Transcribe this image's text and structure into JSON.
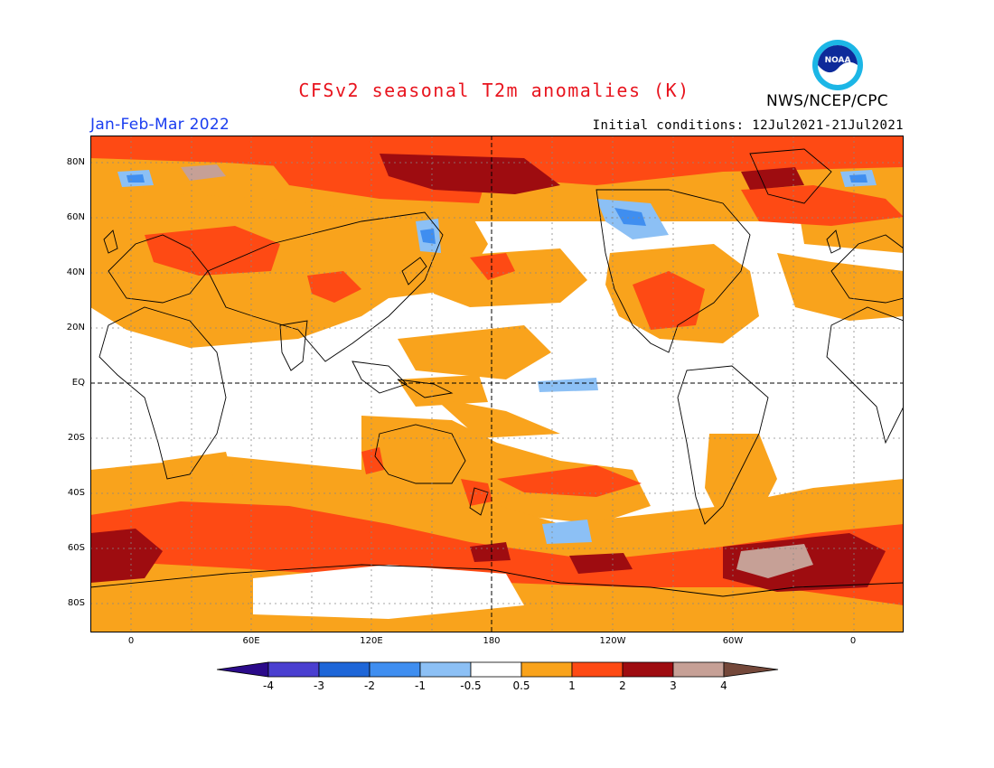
{
  "header": {
    "title": "CFSv2 seasonal T2m anomalies (K)",
    "organization": "NWS/NCEP/CPC",
    "logo_text": "NOAA",
    "period": "Jan-Feb-Mar 2022",
    "initial_conditions": "Initial conditions: 12Jul2021-21Jul2021"
  },
  "map": {
    "lat_labels": [
      "80N",
      "60N",
      "40N",
      "20N",
      "EQ",
      "20S",
      "40S",
      "60S",
      "80S"
    ],
    "lon_labels": [
      "0",
      "60E",
      "120E",
      "180",
      "120W",
      "60W",
      "0"
    ],
    "ocean_color": "#ffffff",
    "gridline_style": "dotted",
    "reference_lines": "dashed equator and dateline"
  },
  "colorbar": {
    "labels": [
      "-4",
      "-3",
      "-2",
      "-1",
      "-0.5",
      "0.5",
      "1",
      "2",
      "3",
      "4"
    ],
    "colors": [
      "#2b0a8a",
      "#4a3fd0",
      "#1e66d8",
      "#3f8ef0",
      "#8cc0f5",
      "#ffffff",
      "#f9a31c",
      "#fe4a14",
      "#9e0c10",
      "#c6a096",
      "#74483a"
    ]
  }
}
